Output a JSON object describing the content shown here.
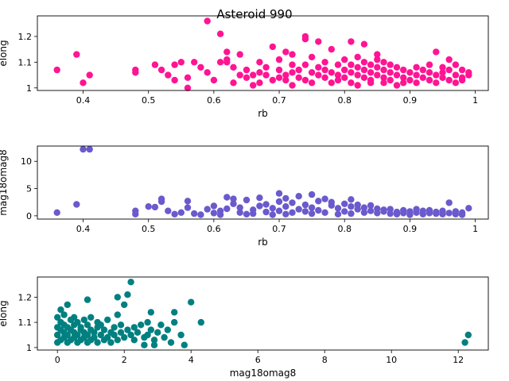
{
  "figure": {
    "title": "Asteroid 990"
  },
  "chart_data": [
    {
      "type": "scatter",
      "xlabel": "rb",
      "ylabel": "elong",
      "xlim": [
        0.33,
        1.02
      ],
      "ylim": [
        0.99,
        1.28
      ],
      "xticks": [
        0.4,
        0.5,
        0.6,
        0.7,
        0.8,
        0.9,
        1.0
      ],
      "yticks": [
        1.0,
        1.1,
        1.2
      ],
      "color": "#ff1493",
      "grid": false,
      "points": [
        [
          0.36,
          1.07
        ],
        [
          0.39,
          1.13
        ],
        [
          0.4,
          1.02
        ],
        [
          0.41,
          1.05
        ],
        [
          0.48,
          1.07
        ],
        [
          0.48,
          1.06
        ],
        [
          0.51,
          1.09
        ],
        [
          0.52,
          1.07
        ],
        [
          0.53,
          1.05
        ],
        [
          0.54,
          1.03
        ],
        [
          0.54,
          1.09
        ],
        [
          0.55,
          1.1
        ],
        [
          0.56,
          1.04
        ],
        [
          0.56,
          1.0
        ],
        [
          0.57,
          1.1
        ],
        [
          0.58,
          1.08
        ],
        [
          0.59,
          1.06
        ],
        [
          0.59,
          1.26
        ],
        [
          0.6,
          1.03
        ],
        [
          0.61,
          1.1
        ],
        [
          0.61,
          1.21
        ],
        [
          0.62,
          1.1
        ],
        [
          0.62,
          1.14
        ],
        [
          0.62,
          1.11
        ],
        [
          0.63,
          1.08
        ],
        [
          0.63,
          1.02
        ],
        [
          0.64,
          1.05
        ],
        [
          0.64,
          1.13
        ],
        [
          0.65,
          1.07
        ],
        [
          0.65,
          1.04
        ],
        [
          0.66,
          1.01
        ],
        [
          0.66,
          1.05
        ],
        [
          0.67,
          1.06
        ],
        [
          0.67,
          1.1
        ],
        [
          0.67,
          1.02
        ],
        [
          0.68,
          1.08
        ],
        [
          0.68,
          1.05
        ],
        [
          0.69,
          1.03
        ],
        [
          0.69,
          1.16
        ],
        [
          0.7,
          1.04
        ],
        [
          0.7,
          1.11
        ],
        [
          0.7,
          1.07
        ],
        [
          0.71,
          1.05
        ],
        [
          0.71,
          1.03
        ],
        [
          0.71,
          1.14
        ],
        [
          0.72,
          1.06
        ],
        [
          0.72,
          1.09
        ],
        [
          0.72,
          1.13
        ],
        [
          0.72,
          1.01
        ],
        [
          0.73,
          1.04
        ],
        [
          0.73,
          1.07
        ],
        [
          0.74,
          1.2
        ],
        [
          0.74,
          1.19
        ],
        [
          0.74,
          1.09
        ],
        [
          0.74,
          1.03
        ],
        [
          0.75,
          1.06
        ],
        [
          0.75,
          1.12
        ],
        [
          0.75,
          1.02
        ],
        [
          0.76,
          1.05
        ],
        [
          0.76,
          1.08
        ],
        [
          0.76,
          1.18
        ],
        [
          0.77,
          1.04
        ],
        [
          0.77,
          1.07
        ],
        [
          0.77,
          1.1
        ],
        [
          0.78,
          1.02
        ],
        [
          0.78,
          1.06
        ],
        [
          0.78,
          1.15
        ],
        [
          0.79,
          1.05
        ],
        [
          0.79,
          1.09
        ],
        [
          0.79,
          1.03
        ],
        [
          0.8,
          1.07
        ],
        [
          0.8,
          1.04
        ],
        [
          0.8,
          1.11
        ],
        [
          0.81,
          1.06
        ],
        [
          0.81,
          1.18
        ],
        [
          0.81,
          1.02
        ],
        [
          0.81,
          1.09
        ],
        [
          0.82,
          1.05
        ],
        [
          0.82,
          1.08
        ],
        [
          0.82,
          1.12
        ],
        [
          0.82,
          1.01
        ],
        [
          0.83,
          1.04
        ],
        [
          0.83,
          1.07
        ],
        [
          0.83,
          1.1
        ],
        [
          0.83,
          1.17
        ],
        [
          0.84,
          1.03
        ],
        [
          0.84,
          1.06
        ],
        [
          0.84,
          1.09
        ],
        [
          0.84,
          1.02
        ],
        [
          0.85,
          1.05
        ],
        [
          0.85,
          1.08
        ],
        [
          0.85,
          1.13
        ],
        [
          0.85,
          1.11
        ],
        [
          0.86,
          1.04
        ],
        [
          0.86,
          1.07
        ],
        [
          0.86,
          1.02
        ],
        [
          0.86,
          1.1
        ],
        [
          0.87,
          1.06
        ],
        [
          0.87,
          1.03
        ],
        [
          0.87,
          1.09
        ],
        [
          0.88,
          1.05
        ],
        [
          0.88,
          1.01
        ],
        [
          0.88,
          1.08
        ],
        [
          0.89,
          1.04
        ],
        [
          0.89,
          1.07
        ],
        [
          0.89,
          1.02
        ],
        [
          0.9,
          1.06
        ],
        [
          0.9,
          1.03
        ],
        [
          0.91,
          1.05
        ],
        [
          0.91,
          1.08
        ],
        [
          0.91,
          1.02
        ],
        [
          0.92,
          1.04
        ],
        [
          0.92,
          1.07
        ],
        [
          0.93,
          1.06
        ],
        [
          0.93,
          1.03
        ],
        [
          0.93,
          1.09
        ],
        [
          0.94,
          1.05
        ],
        [
          0.94,
          1.14
        ],
        [
          0.94,
          1.02
        ],
        [
          0.95,
          1.08
        ],
        [
          0.95,
          1.04
        ],
        [
          0.95,
          1.06
        ],
        [
          0.96,
          1.03
        ],
        [
          0.96,
          1.07
        ],
        [
          0.96,
          1.11
        ],
        [
          0.97,
          1.05
        ],
        [
          0.97,
          1.02
        ],
        [
          0.97,
          1.09
        ],
        [
          0.98,
          1.04
        ],
        [
          0.98,
          1.07
        ],
        [
          0.98,
          1.03
        ],
        [
          0.99,
          1.06
        ],
        [
          0.99,
          1.05
        ]
      ]
    },
    {
      "type": "scatter",
      "xlabel": "rb",
      "ylabel": "mag18omag8",
      "xlim": [
        0.33,
        1.02
      ],
      "ylim": [
        -0.6,
        12.8
      ],
      "xticks": [
        0.4,
        0.5,
        0.6,
        0.7,
        0.8,
        0.9,
        1.0
      ],
      "yticks": [
        0,
        5,
        10
      ],
      "color": "#6a5acd",
      "grid": false,
      "points": [
        [
          0.36,
          0.6
        ],
        [
          0.39,
          2.1
        ],
        [
          0.4,
          12.2
        ],
        [
          0.41,
          12.2
        ],
        [
          0.48,
          0.9
        ],
        [
          0.48,
          0.3
        ],
        [
          0.5,
          1.7
        ],
        [
          0.51,
          1.6
        ],
        [
          0.52,
          3.1
        ],
        [
          0.52,
          2.6
        ],
        [
          0.53,
          0.9
        ],
        [
          0.54,
          0.3
        ],
        [
          0.55,
          0.6
        ],
        [
          0.56,
          1.5
        ],
        [
          0.56,
          2.7
        ],
        [
          0.57,
          0.4
        ],
        [
          0.58,
          0.2
        ],
        [
          0.59,
          1.2
        ],
        [
          0.6,
          0.5
        ],
        [
          0.6,
          1.8
        ],
        [
          0.61,
          0.9
        ],
        [
          0.61,
          0.2
        ],
        [
          0.62,
          3.4
        ],
        [
          0.62,
          1.3
        ],
        [
          0.63,
          2.2
        ],
        [
          0.63,
          3.1
        ],
        [
          0.64,
          0.6
        ],
        [
          0.64,
          1.5
        ],
        [
          0.65,
          0.3
        ],
        [
          0.65,
          2.9
        ],
        [
          0.66,
          1.1
        ],
        [
          0.66,
          0.4
        ],
        [
          0.67,
          1.8
        ],
        [
          0.67,
          3.3
        ],
        [
          0.68,
          0.7
        ],
        [
          0.68,
          2.1
        ],
        [
          0.69,
          0.2
        ],
        [
          0.69,
          1.4
        ],
        [
          0.7,
          4.1
        ],
        [
          0.7,
          0.9
        ],
        [
          0.7,
          2.6
        ],
        [
          0.71,
          3.2
        ],
        [
          0.71,
          1.7
        ],
        [
          0.71,
          0.3
        ],
        [
          0.72,
          0.6
        ],
        [
          0.72,
          2.4
        ],
        [
          0.73,
          1.2
        ],
        [
          0.73,
          3.6
        ],
        [
          0.74,
          0.8
        ],
        [
          0.74,
          2.0
        ],
        [
          0.75,
          3.9
        ],
        [
          0.75,
          1.5
        ],
        [
          0.75,
          0.4
        ],
        [
          0.76,
          2.7
        ],
        [
          0.76,
          1.0
        ],
        [
          0.77,
          3.1
        ],
        [
          0.77,
          0.6
        ],
        [
          0.78,
          1.9
        ],
        [
          0.78,
          2.5
        ],
        [
          0.79,
          0.3
        ],
        [
          0.79,
          1.4
        ],
        [
          0.8,
          2.2
        ],
        [
          0.8,
          0.8
        ],
        [
          0.81,
          1.7
        ],
        [
          0.81,
          3.0
        ],
        [
          0.81,
          0.4
        ],
        [
          0.82,
          1.2
        ],
        [
          0.82,
          2.0
        ],
        [
          0.83,
          0.6
        ],
        [
          0.83,
          1.5
        ],
        [
          0.84,
          0.9
        ],
        [
          0.84,
          1.9
        ],
        [
          0.85,
          0.5
        ],
        [
          0.85,
          1.3
        ],
        [
          0.86,
          0.8
        ],
        [
          0.86,
          1.1
        ],
        [
          0.87,
          0.4
        ],
        [
          0.87,
          1.2
        ],
        [
          0.88,
          0.7
        ],
        [
          0.88,
          0.3
        ],
        [
          0.89,
          1.0
        ],
        [
          0.89,
          0.5
        ],
        [
          0.9,
          0.8
        ],
        [
          0.9,
          0.2
        ],
        [
          0.91,
          1.2
        ],
        [
          0.91,
          0.6
        ],
        [
          0.92,
          0.3
        ],
        [
          0.92,
          0.9
        ],
        [
          0.93,
          0.5
        ],
        [
          0.93,
          1.0
        ],
        [
          0.94,
          0.4
        ],
        [
          0.94,
          0.7
        ],
        [
          0.95,
          0.3
        ],
        [
          0.95,
          0.9
        ],
        [
          0.96,
          0.5
        ],
        [
          0.96,
          2.4
        ],
        [
          0.97,
          0.8
        ],
        [
          0.97,
          0.3
        ],
        [
          0.98,
          0.6
        ],
        [
          0.98,
          0.2
        ],
        [
          0.99,
          1.4
        ]
      ]
    },
    {
      "type": "scatter",
      "xlabel": "mag18omag8",
      "ylabel": "elong",
      "xlim": [
        -0.6,
        12.9
      ],
      "ylim": [
        0.99,
        1.28
      ],
      "xticks": [
        0,
        2,
        4,
        6,
        8,
        10,
        12
      ],
      "yticks": [
        1.0,
        1.1,
        1.2
      ],
      "color": "#008080",
      "grid": false,
      "points": [
        [
          0.0,
          1.02
        ],
        [
          0.0,
          1.05
        ],
        [
          0.0,
          1.08
        ],
        [
          0.0,
          1.12
        ],
        [
          0.1,
          1.03
        ],
        [
          0.1,
          1.07
        ],
        [
          0.1,
          1.1
        ],
        [
          0.1,
          1.15
        ],
        [
          0.2,
          1.04
        ],
        [
          0.2,
          1.06
        ],
        [
          0.2,
          1.09
        ],
        [
          0.2,
          1.13
        ],
        [
          0.3,
          1.02
        ],
        [
          0.3,
          1.05
        ],
        [
          0.3,
          1.08
        ],
        [
          0.3,
          1.17
        ],
        [
          0.4,
          1.03
        ],
        [
          0.4,
          1.07
        ],
        [
          0.4,
          1.11
        ],
        [
          0.5,
          1.04
        ],
        [
          0.5,
          1.06
        ],
        [
          0.5,
          1.09
        ],
        [
          0.5,
          1.12
        ],
        [
          0.6,
          1.02
        ],
        [
          0.6,
          1.05
        ],
        [
          0.6,
          1.1
        ],
        [
          0.7,
          1.03
        ],
        [
          0.7,
          1.07
        ],
        [
          0.7,
          1.08
        ],
        [
          0.8,
          1.04
        ],
        [
          0.8,
          1.06
        ],
        [
          0.8,
          1.11
        ],
        [
          0.9,
          1.02
        ],
        [
          0.9,
          1.05
        ],
        [
          0.9,
          1.09
        ],
        [
          0.9,
          1.19
        ],
        [
          1.0,
          1.03
        ],
        [
          1.0,
          1.07
        ],
        [
          1.0,
          1.12
        ],
        [
          1.1,
          1.04
        ],
        [
          1.1,
          1.06
        ],
        [
          1.2,
          1.02
        ],
        [
          1.2,
          1.08
        ],
        [
          1.2,
          1.1
        ],
        [
          1.3,
          1.05
        ],
        [
          1.3,
          1.09
        ],
        [
          1.4,
          1.03
        ],
        [
          1.4,
          1.07
        ],
        [
          1.5,
          1.04
        ],
        [
          1.5,
          1.11
        ],
        [
          1.6,
          1.06
        ],
        [
          1.6,
          1.02
        ],
        [
          1.7,
          1.08
        ],
        [
          1.7,
          1.05
        ],
        [
          1.8,
          1.03
        ],
        [
          1.8,
          1.13
        ],
        [
          1.8,
          1.2
        ],
        [
          1.9,
          1.06
        ],
        [
          1.9,
          1.09
        ],
        [
          2.0,
          1.04
        ],
        [
          2.0,
          1.17
        ],
        [
          2.1,
          1.07
        ],
        [
          2.1,
          1.21
        ],
        [
          2.2,
          1.05
        ],
        [
          2.2,
          1.26
        ],
        [
          2.3,
          1.08
        ],
        [
          2.3,
          1.03
        ],
        [
          2.4,
          1.06
        ],
        [
          2.5,
          1.09
        ],
        [
          2.6,
          1.04
        ],
        [
          2.6,
          1.01
        ],
        [
          2.7,
          1.05
        ],
        [
          2.7,
          1.1
        ],
        [
          2.8,
          1.07
        ],
        [
          2.8,
          1.14
        ],
        [
          2.9,
          1.03
        ],
        [
          2.9,
          1.01
        ],
        [
          3.0,
          1.06
        ],
        [
          3.1,
          1.09
        ],
        [
          3.2,
          1.04
        ],
        [
          3.3,
          1.07
        ],
        [
          3.4,
          1.02
        ],
        [
          3.5,
          1.14
        ],
        [
          3.5,
          1.1
        ],
        [
          3.7,
          1.05
        ],
        [
          3.8,
          1.01
        ],
        [
          4.0,
          1.18
        ],
        [
          4.3,
          1.1
        ],
        [
          12.2,
          1.02
        ],
        [
          12.3,
          1.05
        ]
      ]
    }
  ]
}
